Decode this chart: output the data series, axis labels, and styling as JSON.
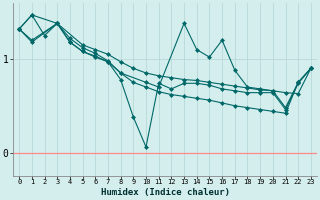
{
  "title": "",
  "xlabel": "Humidex (Indice chaleur)",
  "bg_color": "#d4eeed",
  "grid_color": "#b8d8d8",
  "line_color": "#006868",
  "red_line_color": "#ff8888",
  "xlim": [
    -0.5,
    23.5
  ],
  "ylim": [
    -0.25,
    1.6
  ],
  "yticks": [
    0,
    1
  ],
  "xticks": [
    0,
    1,
    2,
    3,
    4,
    5,
    6,
    7,
    8,
    9,
    10,
    11,
    12,
    13,
    14,
    15,
    16,
    17,
    18,
    19,
    20,
    21,
    22,
    23
  ],
  "series": [
    {
      "x": [
        0,
        1,
        3,
        5,
        6,
        7,
        8,
        9,
        10,
        11,
        12,
        13,
        14,
        15,
        16,
        17,
        18,
        19,
        20,
        21,
        22,
        23
      ],
      "y": [
        1.32,
        1.47,
        1.38,
        1.15,
        1.1,
        1.05,
        0.97,
        0.9,
        0.85,
        0.82,
        0.8,
        0.78,
        0.77,
        0.75,
        0.73,
        0.71,
        0.69,
        0.67,
        0.66,
        0.64,
        0.63,
        0.9
      ]
    },
    {
      "x": [
        0,
        1,
        3,
        4,
        5,
        6,
        7,
        8,
        10,
        11,
        13,
        14,
        15,
        16,
        17,
        18,
        19,
        20,
        21,
        22,
        23
      ],
      "y": [
        1.32,
        1.2,
        1.38,
        1.18,
        1.08,
        1.03,
        0.97,
        0.85,
        0.75,
        0.7,
        1.38,
        1.1,
        1.02,
        1.2,
        0.88,
        0.7,
        0.68,
        0.66,
        0.48,
        0.75,
        0.9
      ]
    },
    {
      "x": [
        0,
        1,
        3,
        4,
        5,
        6,
        7,
        8,
        9,
        10,
        11,
        12,
        13,
        14,
        15,
        16,
        17,
        18,
        19,
        20,
        21,
        22,
        23
      ],
      "y": [
        1.32,
        1.18,
        1.38,
        1.18,
        1.08,
        1.02,
        0.97,
        0.78,
        0.38,
        0.06,
        0.74,
        0.68,
        0.74,
        0.74,
        0.72,
        0.68,
        0.66,
        0.64,
        0.64,
        0.64,
        0.46,
        0.74,
        0.9
      ]
    },
    {
      "x": [
        0,
        1,
        2,
        3,
        4,
        5,
        6,
        7,
        8,
        9,
        10,
        11,
        12,
        13,
        14,
        15,
        16,
        17,
        18,
        19,
        20,
        21,
        22,
        23
      ],
      "y": [
        1.32,
        1.47,
        1.25,
        1.38,
        1.22,
        1.12,
        1.06,
        0.98,
        0.85,
        0.75,
        0.7,
        0.65,
        0.62,
        0.6,
        0.58,
        0.56,
        0.53,
        0.5,
        0.48,
        0.46,
        0.44,
        0.42,
        0.75,
        0.9
      ]
    }
  ]
}
